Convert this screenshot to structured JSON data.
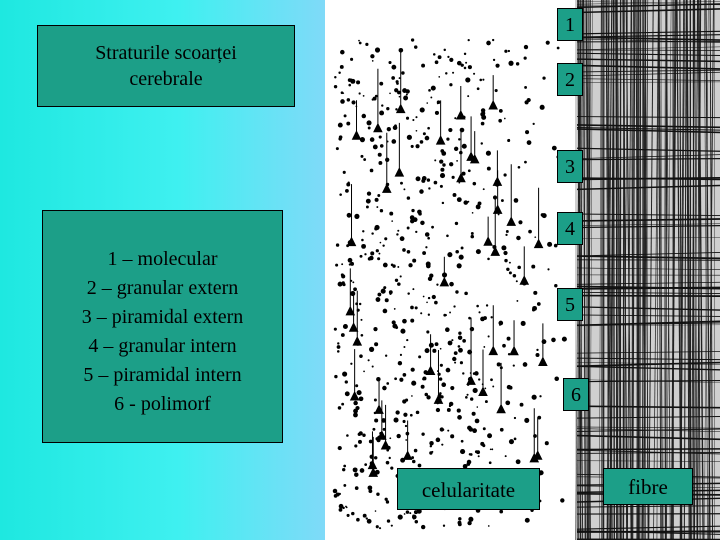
{
  "title_box": {
    "lines": [
      "Straturile scoarței",
      "cerebrale"
    ]
  },
  "legend": {
    "lines": [
      "1 – molecular",
      "2 – granular extern",
      "3 – piramidal extern",
      "4 – granular intern",
      "5 – piramidal intern",
      "6 - polimorf"
    ]
  },
  "layer_labels": [
    "1",
    "2",
    "3",
    "4",
    "5",
    "6"
  ],
  "captions": {
    "cellularity": "celularitate",
    "fibres": "fibre"
  }
}
